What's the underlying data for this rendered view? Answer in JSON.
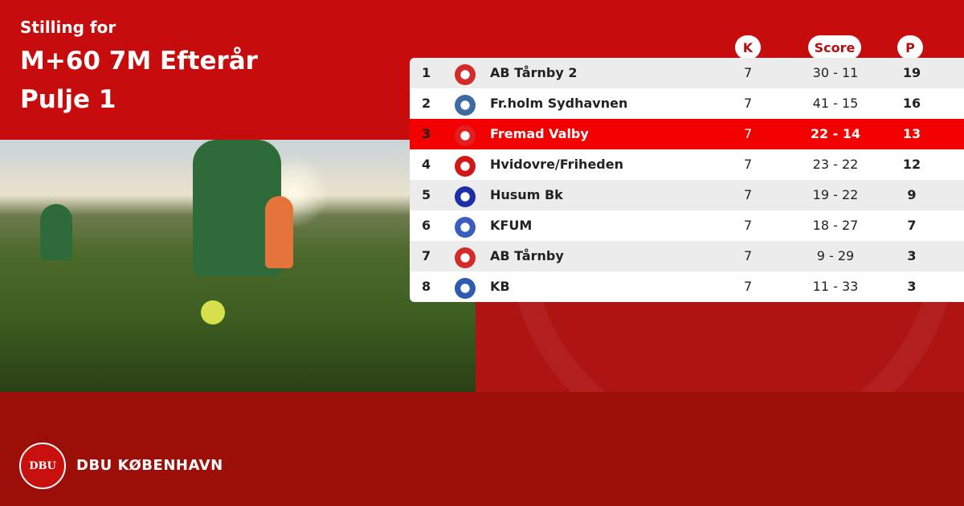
{
  "header": {
    "line1": "Stilling for",
    "line2": "M+60 7M Efterår",
    "line3": "Pulje 1"
  },
  "columns": {
    "k": "K",
    "score": "Score",
    "p": "P"
  },
  "highlight_color": "#f30000",
  "rows": [
    {
      "rank": "1",
      "team": "AB Tårnby 2",
      "k": "7",
      "score": "30 - 11",
      "p": "19",
      "logo_color": "#d42a2a"
    },
    {
      "rank": "2",
      "team": "Fr.holm Sydhavnen",
      "k": "7",
      "score": "41 - 15",
      "p": "16",
      "logo_color": "#3d6aa0"
    },
    {
      "rank": "3",
      "team": "Fremad Valby",
      "k": "7",
      "score": "22 - 14",
      "p": "13",
      "logo_color": "#e02020"
    },
    {
      "rank": "4",
      "team": "Hvidovre/Friheden",
      "k": "7",
      "score": "23 - 22",
      "p": "12",
      "logo_color": "#d01818"
    },
    {
      "rank": "5",
      "team": "Husum Bk",
      "k": "7",
      "score": "19 - 22",
      "p": "9",
      "logo_color": "#1d2fa8"
    },
    {
      "rank": "6",
      "team": "KFUM",
      "k": "7",
      "score": "18 - 27",
      "p": "7",
      "logo_color": "#3a5dc0"
    },
    {
      "rank": "7",
      "team": "AB Tårnby",
      "k": "7",
      "score": "9 - 29",
      "p": "3",
      "logo_color": "#d42a2a"
    },
    {
      "rank": "8",
      "team": "KB",
      "k": "7",
      "score": "11 - 33",
      "p": "3",
      "logo_color": "#2c5bb0"
    }
  ],
  "footer": {
    "seal_text": "DBU",
    "brand": "DBU KØBENHAVN"
  }
}
